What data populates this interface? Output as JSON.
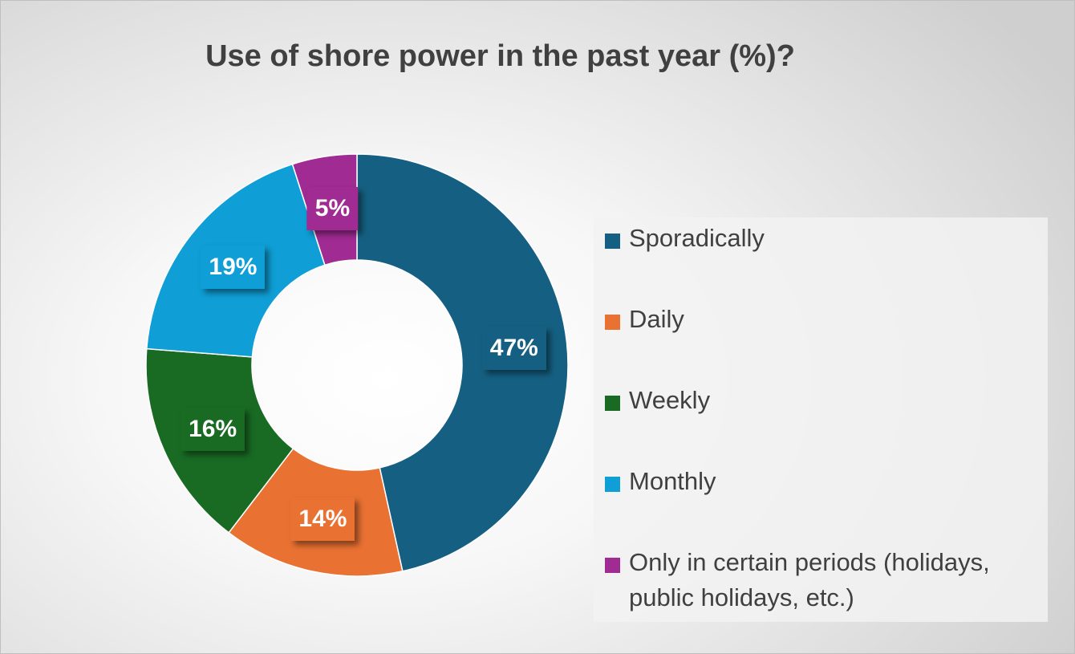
{
  "chart_data": {
    "type": "pie",
    "title": "Use of shore power in the past year (%)?",
    "donut": true,
    "legend_position": "right",
    "unit": "%",
    "slices": [
      {
        "label": "Sporadically",
        "value": 47,
        "display": "47%",
        "color": "#156082"
      },
      {
        "label": "Daily",
        "value": 14,
        "display": "14%",
        "color": "#E97132"
      },
      {
        "label": "Weekly",
        "value": 16,
        "display": "16%",
        "color": "#196B24"
      },
      {
        "label": "Monthly",
        "value": 19,
        "display": "19%",
        "color": "#0F9ED5"
      },
      {
        "label": "Only in certain periods (holidays, public holidays, etc.)",
        "value": 5,
        "display": "5%",
        "color": "#A02B93"
      }
    ]
  }
}
